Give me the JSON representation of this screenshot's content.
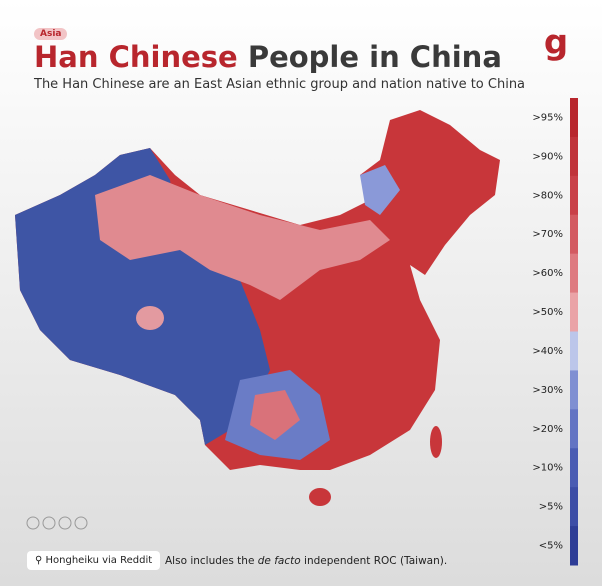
{
  "header": {
    "tag": "Asia",
    "title_highlight": "Han Chinese",
    "title_rest": "People in China",
    "subtitle": "The Han Chinese are an East Asian ethnic group and nation native to China"
  },
  "legend": {
    "items": [
      {
        "label": ">95%",
        "color": "#b8262d"
      },
      {
        "label": ">90%",
        "color": "#c0333a"
      },
      {
        "label": ">80%",
        "color": "#c94048"
      },
      {
        "label": ">70%",
        "color": "#d35a61"
      },
      {
        "label": ">60%",
        "color": "#de7a80"
      },
      {
        "label": ">50%",
        "color": "#eaa3a7"
      },
      {
        "label": ">40%",
        "color": "#bcc6ea"
      },
      {
        "label": ">30%",
        "color": "#7f8fd2"
      },
      {
        "label": ">20%",
        "color": "#6374c3"
      },
      {
        "label": ">10%",
        "color": "#4a5cb3"
      },
      {
        "label": ">5%",
        "color": "#3c4da6"
      },
      {
        "label": "<5%",
        "color": "#2e3d96"
      }
    ]
  },
  "footer": {
    "source": "Hongheiku via Reddit",
    "note_start": "Also includes the ",
    "note_italic": "de facto",
    "note_end": " independent ROC (Taiwan)."
  }
}
